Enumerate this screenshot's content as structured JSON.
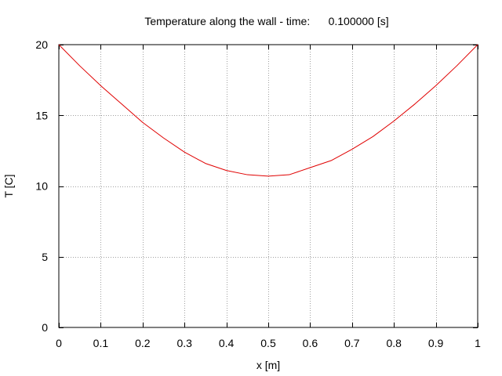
{
  "chart_data": {
    "type": "line",
    "title": "Temperature along the wall - time:      0.100000 [s]",
    "xlabel": "x [m]",
    "ylabel": "T [C]",
    "xlim": [
      0,
      1
    ],
    "ylim": [
      0,
      20
    ],
    "xticks": [
      0,
      0.1,
      0.2,
      0.3,
      0.4,
      0.5,
      0.6,
      0.7,
      0.8,
      0.9,
      1
    ],
    "xtick_labels": [
      "0",
      "0.1",
      "0.2",
      "0.3",
      "0.4",
      "0.5",
      "0.6",
      "0.7",
      "0.8",
      "0.9",
      "1"
    ],
    "yticks": [
      0,
      5,
      10,
      15,
      20
    ],
    "ytick_labels": [
      "0",
      "5",
      "10",
      "15",
      "20"
    ],
    "grid": true,
    "series": [
      {
        "color": "#e00000",
        "x": [
          0,
          0.05,
          0.1,
          0.15,
          0.2,
          0.25,
          0.3,
          0.35,
          0.4,
          0.45,
          0.5,
          0.55,
          0.6,
          0.65,
          0.7,
          0.75,
          0.8,
          0.85,
          0.9,
          0.95,
          1
        ],
        "y": [
          20,
          18.5,
          17.1,
          15.8,
          14.5,
          13.4,
          12.4,
          11.6,
          11.1,
          10.8,
          10.7,
          10.8,
          11.3,
          11.8,
          12.6,
          13.5,
          14.6,
          15.8,
          17.1,
          18.5,
          20
        ]
      }
    ]
  }
}
